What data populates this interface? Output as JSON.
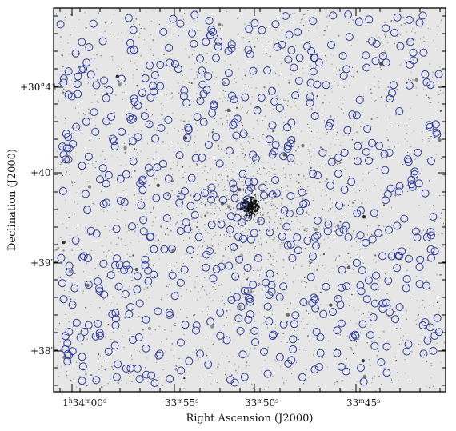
{
  "figure": {
    "xlabel": "Right Ascension (J2000)",
    "ylabel": "Declination (J2000)",
    "x_ticks": [
      {
        "h": "1",
        "m": "34",
        "s": "00"
      },
      {
        "h": "",
        "m": "33",
        "s": "55"
      },
      {
        "h": "",
        "m": "33",
        "s": "50"
      },
      {
        "h": "",
        "m": "33",
        "s": "45"
      }
    ],
    "y_ticks": [
      {
        "deg": "+30°",
        "min": "41′"
      },
      {
        "deg": "+",
        "min": "40′"
      },
      {
        "deg": "+",
        "min": "39′"
      },
      {
        "deg": "+",
        "min": "38′"
      }
    ]
  },
  "colors": {
    "background_sky": "#e9e9e9",
    "stars": "#222222",
    "circle_markers": "#2d3aa0",
    "frame": "#000000"
  }
}
